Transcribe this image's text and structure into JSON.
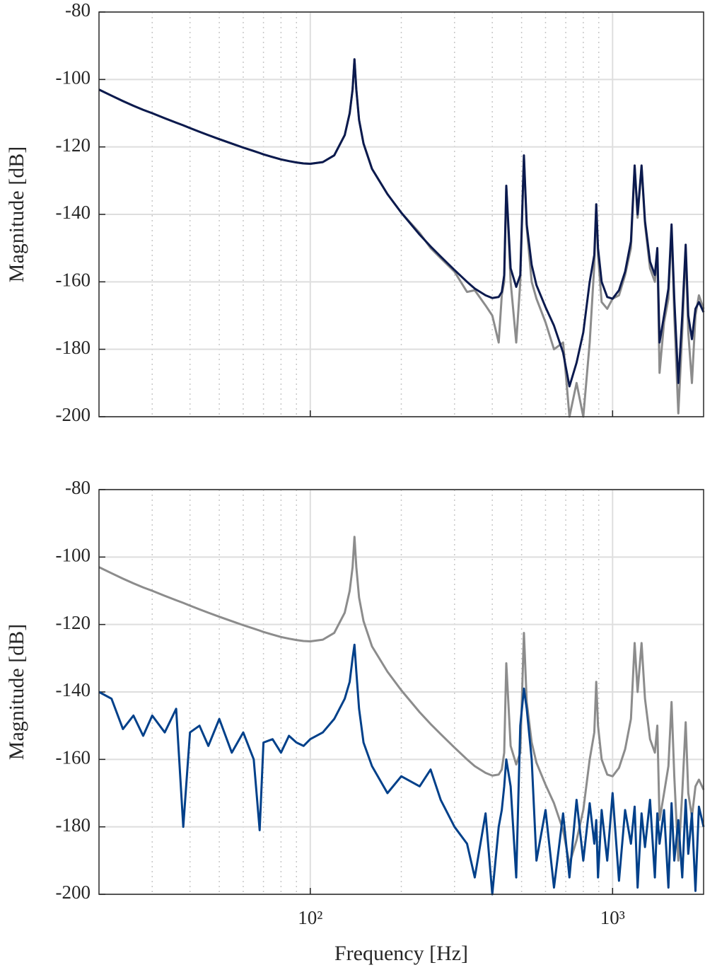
{
  "chart_data": [
    {
      "type": "line",
      "ylabel": "Magnitude [dB]",
      "xscale": "log",
      "grid": true,
      "minor_grid": true,
      "xtick_labels": false,
      "xlim": [
        20,
        2000
      ],
      "ylim": [
        -200,
        -80
      ],
      "xticks": [
        100,
        1000
      ],
      "yticks": [
        -80,
        -100,
        -120,
        -140,
        -160,
        -180,
        -200
      ],
      "x": [
        20,
        22,
        24,
        26,
        28,
        30,
        33,
        36,
        38,
        40,
        43,
        46,
        50,
        55,
        60,
        65,
        68,
        70,
        75,
        80,
        85,
        90,
        95,
        100,
        110,
        120,
        130,
        135,
        138,
        140,
        142,
        145,
        150,
        160,
        180,
        200,
        230,
        250,
        270,
        300,
        330,
        350,
        380,
        400,
        420,
        430,
        438,
        445,
        460,
        480,
        495,
        509,
        520,
        540,
        560,
        600,
        640,
        686,
        720,
        760,
        800,
        840,
        870,
        883,
        895,
        920,
        960,
        1000,
        1050,
        1100,
        1150,
        1183,
        1210,
        1247,
        1280,
        1330,
        1380,
        1406,
        1430,
        1480,
        1530,
        1567,
        1600,
        1650,
        1700,
        1745,
        1780,
        1830,
        1880,
        1930,
        2000
      ],
      "series": [
        {
          "color": "#8c8c8c",
          "values": [
            -103,
            -104.8,
            -106.4,
            -107.8,
            -109,
            -110,
            -111.5,
            -112.8,
            -113.6,
            -114.4,
            -115.5,
            -116.5,
            -117.7,
            -119,
            -120.2,
            -121.2,
            -121.8,
            -122.2,
            -123,
            -123.7,
            -124.2,
            -124.6,
            -124.9,
            -125,
            -124.5,
            -122.5,
            -116.5,
            -110,
            -103,
            -94,
            -103,
            -112,
            -119,
            -126.5,
            -134,
            -139.5,
            -145.5,
            -150,
            -153,
            -157,
            -163,
            -162.5,
            -167,
            -170,
            -178,
            -164,
            -160,
            -132,
            -160,
            -178,
            -160,
            -123,
            -144,
            -160,
            -165,
            -172,
            -180,
            -178,
            -200,
            -190,
            -200,
            -178,
            -155,
            -137,
            -152,
            -166,
            -168,
            -165,
            -164,
            -158,
            -150,
            -126,
            -141,
            -126,
            -143,
            -156,
            -160,
            -151,
            -187,
            -172,
            -165,
            -144,
            -170,
            -199,
            -175,
            -150,
            -175,
            -190,
            -170,
            -164,
            -168
          ]
        },
        {
          "color": "#0b1a4e",
          "values": [
            -103,
            -104.8,
            -106.4,
            -107.8,
            -109,
            -110,
            -111.5,
            -112.8,
            -113.6,
            -114.4,
            -115.5,
            -116.5,
            -117.7,
            -119,
            -120.2,
            -121.2,
            -121.8,
            -122.2,
            -123,
            -123.7,
            -124.2,
            -124.6,
            -124.9,
            -125,
            -124.5,
            -122.5,
            -116.5,
            -110,
            -103,
            -94,
            -103,
            -112,
            -119,
            -126.5,
            -134,
            -139.5,
            -146,
            -149.5,
            -152.5,
            -156.5,
            -160,
            -162,
            -164,
            -164.8,
            -164.5,
            -163,
            -158,
            -131.5,
            -156,
            -161.5,
            -158,
            -122.5,
            -143,
            -155,
            -161,
            -167.5,
            -173,
            -181,
            -191,
            -184,
            -175,
            -160,
            -152,
            -137,
            -150,
            -160,
            -164.5,
            -165,
            -162.5,
            -157,
            -148,
            -125.5,
            -140,
            -125.5,
            -142,
            -154,
            -158,
            -150,
            -178,
            -170,
            -162,
            -143,
            -165,
            -190,
            -170,
            -149,
            -170,
            -177,
            -168,
            -166,
            -169
          ]
        }
      ]
    },
    {
      "type": "line",
      "xlabel": "Frequency [Hz]",
      "ylabel": "Magnitude [dB]",
      "xscale": "log",
      "grid": true,
      "minor_grid": true,
      "xtick_labels": true,
      "xlim": [
        20,
        2000
      ],
      "ylim": [
        -200,
        -80
      ],
      "xticks": [
        {
          "value": 100,
          "label": "10²"
        },
        {
          "value": 1000,
          "label": "10³"
        }
      ],
      "yticks": [
        -80,
        -100,
        -120,
        -140,
        -160,
        -180,
        -200
      ],
      "x": [
        20,
        22,
        24,
        26,
        28,
        30,
        33,
        36,
        38,
        40,
        43,
        46,
        50,
        55,
        60,
        65,
        68,
        70,
        75,
        80,
        85,
        90,
        95,
        100,
        110,
        120,
        130,
        135,
        138,
        140,
        142,
        145,
        150,
        160,
        180,
        200,
        230,
        250,
        270,
        300,
        330,
        350,
        380,
        400,
        420,
        430,
        438,
        445,
        460,
        480,
        495,
        509,
        520,
        540,
        560,
        600,
        640,
        686,
        720,
        760,
        800,
        840,
        870,
        883,
        895,
        920,
        960,
        1000,
        1050,
        1100,
        1150,
        1183,
        1210,
        1247,
        1280,
        1330,
        1380,
        1406,
        1430,
        1480,
        1530,
        1567,
        1600,
        1650,
        1700,
        1745,
        1780,
        1830,
        1880,
        1930,
        2000
      ],
      "series": [
        {
          "color": "#8c8c8c",
          "values": [
            -103,
            -104.8,
            -106.4,
            -107.8,
            -109,
            -110,
            -111.5,
            -112.8,
            -113.6,
            -114.4,
            -115.5,
            -116.5,
            -117.7,
            -119,
            -120.2,
            -121.2,
            -121.8,
            -122.2,
            -123,
            -123.7,
            -124.2,
            -124.6,
            -124.9,
            -125,
            -124.5,
            -122.5,
            -116.5,
            -110,
            -103,
            -94,
            -103,
            -112,
            -119,
            -126.5,
            -134,
            -139.5,
            -146,
            -149.5,
            -152.5,
            -156.5,
            -160,
            -162,
            -164,
            -164.8,
            -164.5,
            -163,
            -158,
            -131.5,
            -156,
            -161.5,
            -158,
            -122.5,
            -143,
            -155,
            -161,
            -167.5,
            -173,
            -181,
            -191,
            -184,
            -175,
            -160,
            -152,
            -137,
            -150,
            -160,
            -164.5,
            -165,
            -162.5,
            -157,
            -148,
            -125.5,
            -140,
            -125.5,
            -142,
            -154,
            -158,
            -150,
            -178,
            -170,
            -162,
            -143,
            -165,
            -190,
            -170,
            -149,
            -170,
            -177,
            -168,
            -166,
            -169
          ]
        },
        {
          "color": "#00408a",
          "values": [
            -140,
            -142,
            -151,
            -147,
            -153,
            -147,
            -152,
            -145,
            -180,
            -152,
            -150,
            -156,
            -148,
            -158,
            -152,
            -160,
            -181,
            -155,
            -154,
            -158,
            -153,
            -155,
            -156,
            -154,
            -152,
            -148,
            -142,
            -137,
            -130,
            -126,
            -134,
            -145,
            -155,
            -162,
            -170,
            -165,
            -168,
            -163,
            -172,
            -180,
            -185,
            -195,
            -176,
            -200,
            -180,
            -175,
            -168,
            -160,
            -168,
            -195,
            -150,
            -139,
            -145,
            -160,
            -190,
            -175,
            -198,
            -176,
            -195,
            -172,
            -190,
            -173,
            -185,
            -178,
            -195,
            -175,
            -190,
            -170,
            -196,
            -175,
            -185,
            -174,
            -198,
            -176,
            -186,
            -172,
            -195,
            -176,
            -185,
            -175,
            -198,
            -173,
            -190,
            -178,
            -195,
            -172,
            -188,
            -176,
            -199,
            -174,
            -180
          ]
        }
      ]
    }
  ]
}
